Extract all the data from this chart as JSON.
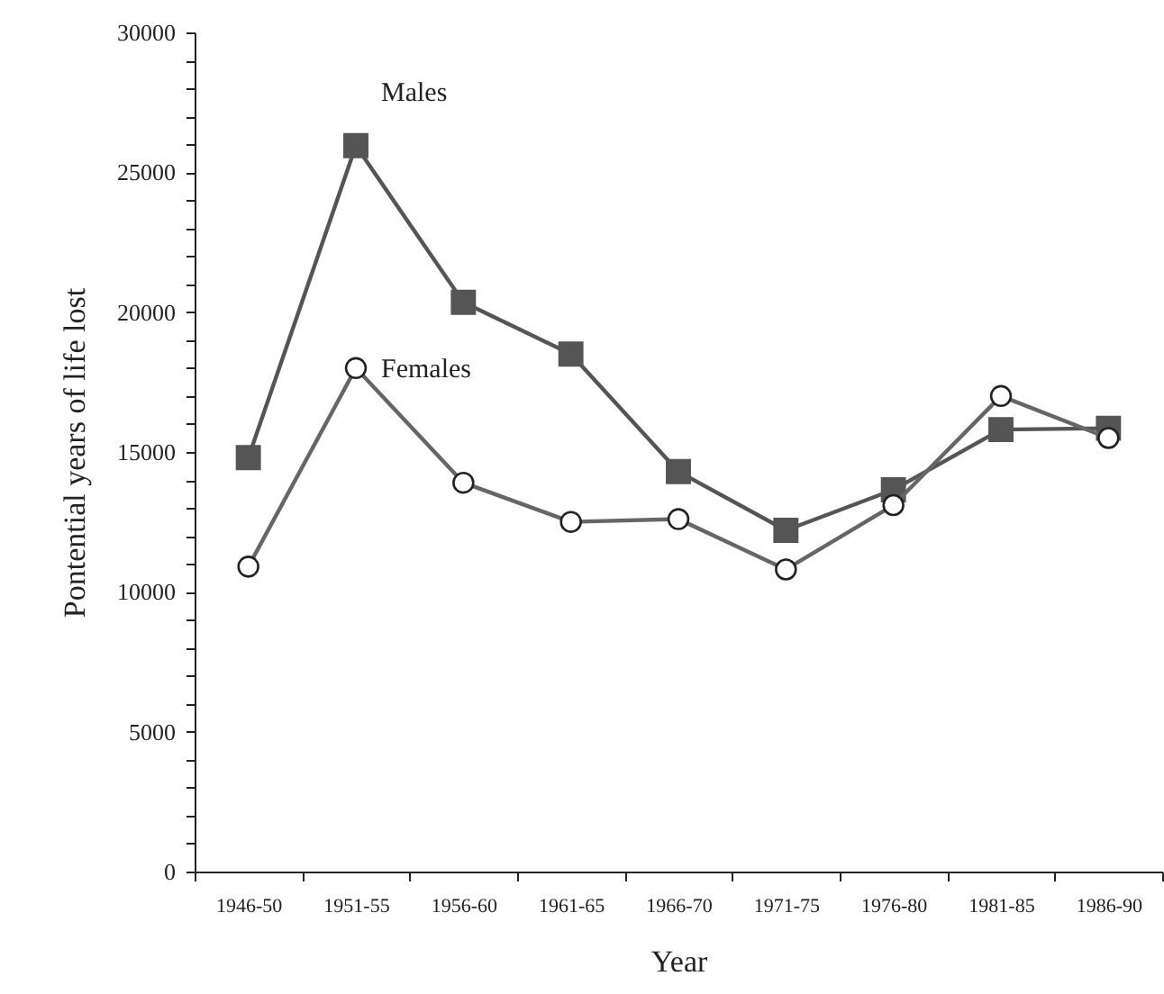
{
  "chart_data": {
    "type": "line",
    "xlabel": "Year",
    "ylabel": "Pontential years of life lost",
    "categories": [
      "1946-50",
      "1951-55",
      "1956-60",
      "1961-65",
      "1966-70",
      "1971-75",
      "1976-80",
      "1981-85",
      "1986-90"
    ],
    "series": [
      {
        "name": "Males",
        "color": "#555555",
        "marker": "square",
        "values": [
          14800,
          25950,
          20350,
          18500,
          14300,
          12200,
          13650,
          15800,
          15850
        ]
      },
      {
        "name": "Females",
        "color": "#666666",
        "marker": "circle",
        "values": [
          10900,
          18000,
          13900,
          12500,
          12600,
          10800,
          13100,
          17000,
          15500
        ]
      }
    ],
    "ylim": [
      0,
      30000
    ],
    "yticks": [
      0,
      {
        "value": 1000,
        "label": null
      },
      {
        "value": 2000,
        "label": null
      },
      {
        "value": 3000,
        "label": null
      },
      {
        "value": 4000,
        "label": null
      },
      5000,
      {
        "value": 6000,
        "label": null
      },
      {
        "value": 7000,
        "label": null
      },
      {
        "value": 8000,
        "label": null
      },
      {
        "value": 9000,
        "label": null
      },
      10000,
      {
        "value": 11000,
        "label": null
      },
      {
        "value": 12000,
        "label": null
      },
      {
        "value": 13000,
        "label": null
      },
      {
        "value": 14000,
        "label": null
      },
      15000,
      {
        "value": 16000,
        "label": null
      },
      {
        "value": 17000,
        "label": null
      },
      {
        "value": 18000,
        "label": null
      },
      {
        "value": 19000,
        "label": null
      },
      20000,
      {
        "value": 21000,
        "label": null
      },
      {
        "value": 22000,
        "label": null
      },
      {
        "value": 23000,
        "label": null
      },
      {
        "value": 24000,
        "label": null
      },
      25000,
      {
        "value": 26000,
        "label": null
      },
      {
        "value": 27000,
        "label": null
      },
      {
        "value": 28000,
        "label": null
      },
      {
        "value": 29000,
        "label": null
      },
      30000
    ],
    "grid": false
  }
}
